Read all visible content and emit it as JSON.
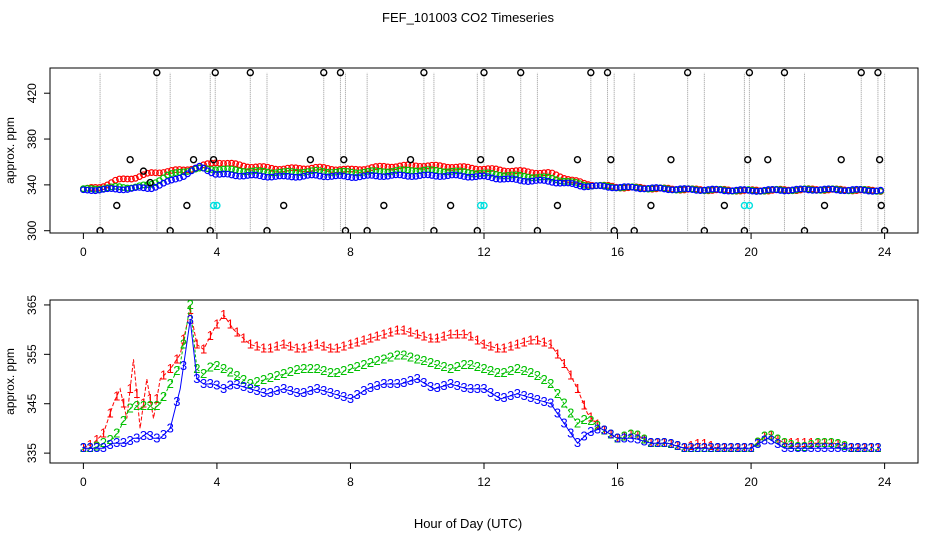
{
  "figure": {
    "title": "FEF_101003  CO2 Timeseries",
    "xlabel": "Hour of Day (UTC)"
  },
  "colors": {
    "series_1": "#ff0000",
    "series_2": "#00c000",
    "series_3": "#0000ff",
    "outlier_black": "#000000",
    "outlier_cyan": "#00e0e0",
    "vertical_line": "#9a9a9a"
  },
  "chart_data": [
    {
      "type": "scatter",
      "panel": "top",
      "ylabel": "approx. ppm",
      "xlim": [
        -1,
        25
      ],
      "ylim": [
        298,
        442
      ],
      "xticks": [
        0,
        4,
        8,
        12,
        16,
        20,
        24
      ],
      "yticks": [
        300,
        340,
        380,
        420
      ],
      "tick_labels_x": [
        "0",
        "4",
        "8",
        "12",
        "16",
        "20",
        "24"
      ],
      "tick_labels_y": [
        "300",
        "340",
        "380",
        "420"
      ],
      "grid": false,
      "series": [
        {
          "values_at_hours": [
            [
              0,
              336
            ],
            [
              0.5,
              338
            ],
            [
              1,
              344
            ],
            [
              1.5,
              346
            ],
            [
              2,
              350
            ],
            [
              2.5,
              352
            ],
            [
              3,
              353
            ],
            [
              3.5,
              356
            ],
            [
              4,
              360
            ],
            [
              5,
              356
            ],
            [
              6,
              354
            ],
            [
              7,
              355
            ],
            [
              8,
              353
            ],
            [
              9,
              356
            ],
            [
              10,
              357
            ],
            [
              11,
              356
            ],
            [
              12,
              354
            ],
            [
              13,
              352
            ],
            [
              14,
              350
            ],
            [
              15,
              341
            ],
            [
              16,
              338
            ],
            [
              18,
              336
            ],
            [
              20,
              335
            ],
            [
              22,
              336
            ],
            [
              24,
              335
            ]
          ]
        },
        {
          "values_at_hours": [
            [
              0,
              336
            ],
            [
              0.5,
              337
            ],
            [
              1,
              338
            ],
            [
              1.5,
              338
            ],
            [
              2,
              340
            ],
            [
              2.5,
              348
            ],
            [
              3,
              352
            ],
            [
              3.5,
              354
            ],
            [
              4,
              354
            ],
            [
              5,
              352
            ],
            [
              6,
              351
            ],
            [
              7,
              352
            ],
            [
              8,
              351
            ],
            [
              9,
              352
            ],
            [
              10,
              353
            ],
            [
              11,
              352
            ],
            [
              12,
              350
            ],
            [
              13,
              348
            ],
            [
              14,
              346
            ],
            [
              15,
              340
            ],
            [
              16,
              338
            ],
            [
              18,
              336
            ],
            [
              20,
              335
            ],
            [
              22,
              336
            ],
            [
              24,
              335
            ]
          ]
        },
        {
          "values_at_hours": [
            [
              0,
              335
            ],
            [
              0.5,
              336
            ],
            [
              1,
              336
            ],
            [
              1.5,
              337
            ],
            [
              2,
              337
            ],
            [
              2.5,
              342
            ],
            [
              3,
              348
            ],
            [
              3.5,
              356
            ],
            [
              4,
              349
            ],
            [
              5,
              348
            ],
            [
              6,
              347
            ],
            [
              7,
              348
            ],
            [
              8,
              347
            ],
            [
              9,
              348
            ],
            [
              10,
              348
            ],
            [
              11,
              348
            ],
            [
              12,
              347
            ],
            [
              13,
              344
            ],
            [
              14,
              343
            ],
            [
              15,
              339
            ],
            [
              16,
              338
            ],
            [
              18,
              336
            ],
            [
              20,
              335
            ],
            [
              22,
              336
            ],
            [
              24,
              335
            ]
          ]
        }
      ],
      "outliers_black": [
        [
          0.5,
          300
        ],
        [
          1.0,
          322
        ],
        [
          1.4,
          362
        ],
        [
          1.8,
          352
        ],
        [
          2.0,
          342
        ],
        [
          2.2,
          438
        ],
        [
          2.6,
          300
        ],
        [
          3.1,
          322
        ],
        [
          3.3,
          362
        ],
        [
          3.8,
          300
        ],
        [
          3.9,
          362
        ],
        [
          3.95,
          438
        ],
        [
          5.0,
          438
        ],
        [
          5.5,
          300
        ],
        [
          6.0,
          322
        ],
        [
          6.8,
          362
        ],
        [
          7.2,
          438
        ],
        [
          7.7,
          438
        ],
        [
          7.8,
          362
        ],
        [
          7.85,
          300
        ],
        [
          8.5,
          300
        ],
        [
          9.0,
          322
        ],
        [
          9.8,
          362
        ],
        [
          10.2,
          438
        ],
        [
          10.5,
          300
        ],
        [
          11.0,
          322
        ],
        [
          11.8,
          300
        ],
        [
          11.9,
          362
        ],
        [
          12.0,
          438
        ],
        [
          12.8,
          362
        ],
        [
          13.1,
          438
        ],
        [
          13.6,
          300
        ],
        [
          14.2,
          322
        ],
        [
          14.8,
          362
        ],
        [
          15.2,
          438
        ],
        [
          15.7,
          438
        ],
        [
          15.8,
          362
        ],
        [
          15.9,
          300
        ],
        [
          16.5,
          300
        ],
        [
          17.0,
          322
        ],
        [
          17.6,
          362
        ],
        [
          18.1,
          438
        ],
        [
          18.6,
          300
        ],
        [
          19.2,
          322
        ],
        [
          19.8,
          300
        ],
        [
          19.9,
          362
        ],
        [
          19.95,
          438
        ],
        [
          20.5,
          362
        ],
        [
          21.0,
          438
        ],
        [
          21.6,
          300
        ],
        [
          22.2,
          322
        ],
        [
          22.7,
          362
        ],
        [
          23.3,
          438
        ],
        [
          23.8,
          438
        ],
        [
          23.85,
          362
        ],
        [
          23.9,
          322
        ],
        [
          24.0,
          300
        ]
      ],
      "outliers_cyan": [
        [
          3.9,
          322
        ],
        [
          4.0,
          322
        ],
        [
          11.9,
          322
        ],
        [
          12.0,
          322
        ],
        [
          19.8,
          322
        ],
        [
          19.95,
          322
        ]
      ],
      "lines_to_ceiling_hours": [
        0.5,
        2.2,
        2.6,
        3.8,
        3.95,
        5.0,
        5.5,
        7.2,
        7.7,
        7.85,
        8.5,
        10.2,
        10.5,
        11.8,
        12.0,
        13.1,
        13.6,
        15.2,
        15.7,
        15.9,
        16.5,
        18.1,
        18.6,
        19.8,
        19.95,
        21.0,
        21.6,
        23.3,
        23.8,
        24.0
      ]
    },
    {
      "type": "line",
      "panel": "bottom",
      "ylabel": "approx. ppm",
      "xlim": [
        -1,
        25
      ],
      "ylim": [
        333,
        366
      ],
      "xticks": [
        0,
        4,
        8,
        12,
        16,
        20,
        24
      ],
      "yticks": [
        335,
        345,
        355,
        365
      ],
      "tick_labels_x": [
        "0",
        "4",
        "8",
        "12",
        "16",
        "20",
        "24"
      ],
      "tick_labels_y": [
        "335",
        "345",
        "355",
        "365"
      ],
      "grid": false,
      "marker_labels": [
        "1",
        "2",
        "3"
      ],
      "series": [
        {
          "x": [
            0,
            0.3,
            0.6,
            0.9,
            1.1,
            1.3,
            1.5,
            1.7,
            1.9,
            2.1,
            2.3,
            2.6,
            2.9,
            3.2,
            3.4,
            3.6,
            3.9,
            4.2,
            4.5,
            5,
            5.5,
            6,
            6.5,
            7,
            7.5,
            8,
            8.5,
            9,
            9.5,
            10,
            10.5,
            11,
            11.5,
            12,
            12.5,
            13,
            13.5,
            14,
            14.5,
            14.8,
            15.1,
            15.5,
            16,
            16.5,
            17,
            17.5,
            18,
            18.5,
            19,
            19.5,
            20,
            20.5,
            21,
            21.5,
            22,
            22.5,
            23,
            23.5
          ],
          "y": [
            336,
            337,
            339,
            345,
            348,
            342,
            354,
            340,
            350,
            342,
            350,
            352,
            355,
            364,
            357,
            356,
            360,
            363,
            360,
            357,
            356,
            357,
            356,
            357,
            356,
            357,
            358,
            359,
            360,
            359,
            358,
            359,
            359,
            357,
            356,
            357,
            358,
            357,
            352,
            348,
            343,
            340,
            338,
            339,
            337,
            337,
            336,
            337,
            336,
            336,
            336,
            339,
            337,
            337,
            337,
            337,
            336,
            336
          ]
        },
        {
          "x": [
            0,
            0.3,
            0.6,
            0.9,
            1.1,
            1.3,
            1.5,
            1.7,
            1.9,
            2.1,
            2.3,
            2.6,
            2.9,
            3.2,
            3.4,
            3.6,
            3.9,
            4.2,
            4.5,
            5,
            5.5,
            6,
            6.5,
            7,
            7.5,
            8,
            8.5,
            9,
            9.5,
            10,
            10.5,
            11,
            11.5,
            12,
            12.5,
            13,
            13.5,
            14,
            14.5,
            14.8,
            15.1,
            15.5,
            16,
            16.5,
            17,
            17.5,
            18,
            18.5,
            19,
            19.5,
            20,
            20.5,
            21,
            21.5,
            22,
            22.5,
            23,
            23.5
          ],
          "y": [
            336,
            336,
            337,
            338,
            340,
            343,
            345,
            344,
            345,
            344,
            345,
            349,
            353,
            365,
            352,
            351,
            353,
            352,
            351,
            349,
            350,
            351,
            352,
            352,
            351,
            352,
            353,
            354,
            355,
            354,
            353,
            352,
            353,
            352,
            351,
            352,
            351,
            349,
            344,
            341,
            342,
            340,
            338,
            339,
            337,
            337,
            336,
            336,
            336,
            336,
            336,
            339,
            337,
            336,
            337,
            337,
            336,
            336
          ]
        },
        {
          "x": [
            0,
            0.3,
            0.6,
            0.9,
            1.1,
            1.3,
            1.5,
            1.7,
            1.9,
            2.1,
            2.3,
            2.6,
            2.9,
            3.2,
            3.4,
            3.6,
            3.9,
            4.2,
            4.5,
            5,
            5.5,
            6,
            6.5,
            7,
            7.5,
            8,
            8.5,
            9,
            9.5,
            10,
            10.5,
            11,
            11.5,
            12,
            12.5,
            13,
            13.5,
            14,
            14.5,
            14.8,
            15.1,
            15.5,
            16,
            16.5,
            17,
            17.5,
            18,
            18.5,
            19,
            19.5,
            20,
            20.5,
            21,
            21.5,
            22,
            22.5,
            23,
            23.5
          ],
          "y": [
            336,
            336,
            336,
            337,
            337,
            337,
            338,
            338,
            339,
            338,
            338,
            340,
            348,
            362,
            350,
            349,
            349,
            348,
            349,
            348,
            347,
            348,
            347,
            348,
            347,
            346,
            348,
            349,
            349,
            350,
            348,
            349,
            348,
            348,
            346,
            347,
            346,
            345,
            340,
            337,
            339,
            340,
            338,
            338,
            337,
            337,
            336,
            336,
            336,
            336,
            336,
            338,
            336,
            336,
            336,
            336,
            336,
            336
          ]
        }
      ]
    }
  ]
}
